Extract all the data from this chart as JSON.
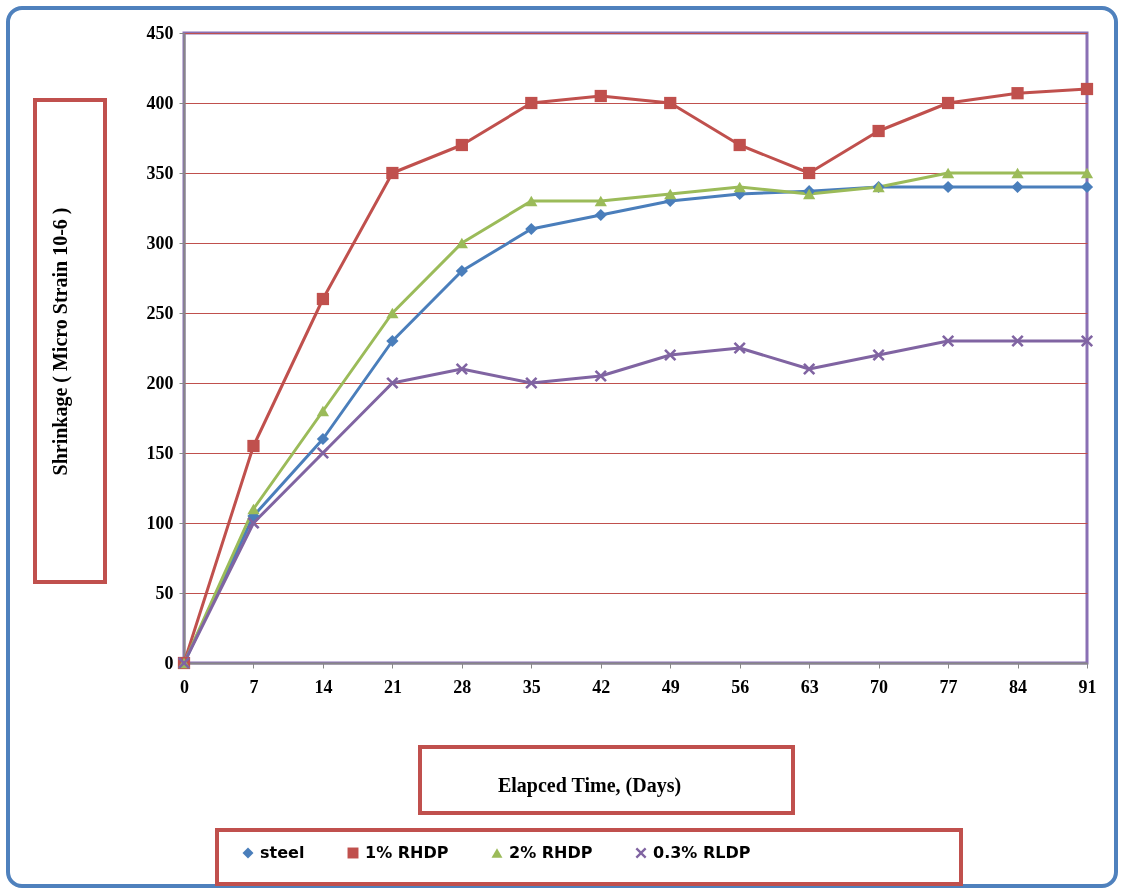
{
  "chart_data": {
    "type": "line",
    "xlabel": "Elapced Time, (Days)",
    "ylabel": "Shrinkage ( Micro Strain 10-6 )",
    "x": [
      0,
      7,
      14,
      21,
      28,
      35,
      42,
      49,
      56,
      63,
      70,
      77,
      84,
      91
    ],
    "xlim": [
      0,
      91
    ],
    "xticks": [
      0,
      7,
      14,
      21,
      28,
      35,
      42,
      49,
      56,
      63,
      70,
      77,
      84,
      91
    ],
    "ylim": [
      0,
      450
    ],
    "yticks": [
      0,
      50,
      100,
      150,
      200,
      250,
      300,
      350,
      400,
      450
    ],
    "grid": "y",
    "legend": "bottom",
    "series": [
      {
        "name": "steel",
        "color": "#4a7ebb",
        "marker": "diamond",
        "values": [
          0,
          105,
          160,
          230,
          280,
          310,
          320,
          330,
          335,
          337,
          340,
          340,
          340,
          340
        ]
      },
      {
        "name": "1% RHDP",
        "color": "#c0504d",
        "marker": "square",
        "values": [
          0,
          155,
          260,
          350,
          370,
          400,
          405,
          400,
          370,
          350,
          380,
          400,
          407,
          410
        ]
      },
      {
        "name": "2% RHDP",
        "color": "#9bbb59",
        "marker": "triangle",
        "values": [
          0,
          110,
          180,
          250,
          300,
          330,
          330,
          335,
          340,
          335,
          340,
          350,
          350,
          350
        ]
      },
      {
        "name": "0.3% RLDP",
        "color": "#8064a2",
        "marker": "cross",
        "values": [
          0,
          100,
          150,
          200,
          210,
          200,
          205,
          220,
          225,
          210,
          220,
          230,
          230,
          230
        ]
      }
    ]
  }
}
